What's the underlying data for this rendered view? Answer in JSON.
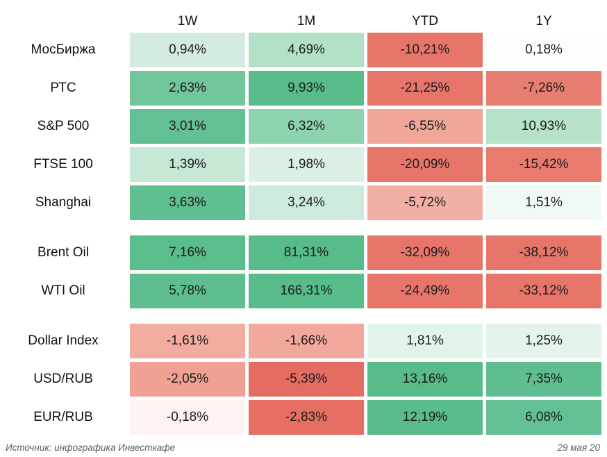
{
  "table": {
    "columns": [
      "1W",
      "1M",
      "YTD",
      "1Y"
    ],
    "groups": [
      {
        "name": "equity-indices",
        "rows": [
          {
            "label": "МосБиржа",
            "cells": [
              {
                "text": "0,94%",
                "bg": "#d4ecdf"
              },
              {
                "text": "4,69%",
                "bg": "#b3e1c8"
              },
              {
                "text": "-10,21%",
                "bg": "#e7756a"
              },
              {
                "text": "0,18%",
                "bg": "#fcfefd"
              }
            ]
          },
          {
            "label": "РТС",
            "cells": [
              {
                "text": "2,63%",
                "bg": "#71c69c"
              },
              {
                "text": "9,93%",
                "bg": "#57bb8a"
              },
              {
                "text": "-21,25%",
                "bg": "#e7756a"
              },
              {
                "text": "-7,26%",
                "bg": "#e87d71"
              }
            ]
          },
          {
            "label": "S&P 500",
            "cells": [
              {
                "text": "3,01%",
                "bg": "#63c094"
              },
              {
                "text": "6,32%",
                "bg": "#8ed3b0"
              },
              {
                "text": "-6,55%",
                "bg": "#f0a79a"
              },
              {
                "text": "10,93%",
                "bg": "#b5e2c9"
              }
            ]
          },
          {
            "label": "FTSE 100",
            "cells": [
              {
                "text": "1,39%",
                "bg": "#c7e7d5"
              },
              {
                "text": "1,98%",
                "bg": "#daf0e5"
              },
              {
                "text": "-20,09%",
                "bg": "#e7756a"
              },
              {
                "text": "-15,42%",
                "bg": "#e87a6e"
              }
            ]
          },
          {
            "label": "Shanghai",
            "cells": [
              {
                "text": "3,63%",
                "bg": "#5fbf91"
              },
              {
                "text": "3,24%",
                "bg": "#cdebdc"
              },
              {
                "text": "-5,72%",
                "bg": "#f2b0a4"
              },
              {
                "text": "1,51%",
                "bg": "#f0f9f4"
              }
            ]
          }
        ]
      },
      {
        "name": "commodities",
        "rows": [
          {
            "label": "Brent Oil",
            "cells": [
              {
                "text": "7,16%",
                "bg": "#5abd8c"
              },
              {
                "text": "81,31%",
                "bg": "#57bb8a"
              },
              {
                "text": "-32,09%",
                "bg": "#e7756a"
              },
              {
                "text": "-38,12%",
                "bg": "#e7756a"
              }
            ]
          },
          {
            "label": "WTI Oil",
            "cells": [
              {
                "text": "5,78%",
                "bg": "#5ebe8f"
              },
              {
                "text": "166,31%",
                "bg": "#57bb8a"
              },
              {
                "text": "-24,49%",
                "bg": "#e7756a"
              },
              {
                "text": "-33,12%",
                "bg": "#e7756a"
              }
            ]
          }
        ]
      },
      {
        "name": "currencies",
        "rows": [
          {
            "label": "Dollar Index",
            "cells": [
              {
                "text": "-1,61%",
                "bg": "#f2aca0"
              },
              {
                "text": "-1,66%",
                "bg": "#f1a99d"
              },
              {
                "text": "1,81%",
                "bg": "#e2f3ea"
              },
              {
                "text": "1,25%",
                "bg": "#e4f4eb"
              }
            ]
          },
          {
            "label": "USD/RUB",
            "cells": [
              {
                "text": "-2,05%",
                "bg": "#f0a094"
              },
              {
                "text": "-5,39%",
                "bg": "#e56c60"
              },
              {
                "text": "13,16%",
                "bg": "#57bb8a"
              },
              {
                "text": "7,35%",
                "bg": "#5fbe90"
              }
            ]
          },
          {
            "label": "EUR/RUB",
            "cells": [
              {
                "text": "-0,18%",
                "bg": "#fdf3f1"
              },
              {
                "text": "-2,83%",
                "bg": "#e66e62"
              },
              {
                "text": "12,19%",
                "bg": "#5abc8b"
              },
              {
                "text": "6,08%",
                "bg": "#64c195"
              }
            ]
          }
        ]
      }
    ]
  },
  "footer": {
    "source": "Источник: инфографика Инвесткафе",
    "date": "29 мая 20"
  },
  "colors": {
    "positive_max": "#57bb8a",
    "negative_max": "#e7756a",
    "neutral": "#ffffff",
    "text": "#1c1c1c",
    "footer_text": "#5f5f5f"
  },
  "chart_data": {
    "type": "heatmap",
    "title": "",
    "columns": [
      "1W",
      "1M",
      "YTD",
      "1Y"
    ],
    "rows": [
      "МосБиржа",
      "РТС",
      "S&P 500",
      "FTSE 100",
      "Shanghai",
      "Brent Oil",
      "WTI Oil",
      "Dollar Index",
      "USD/RUB",
      "EUR/RUB"
    ],
    "row_groups": [
      [
        "МосБиржа",
        "РТС",
        "S&P 500",
        "FTSE 100",
        "Shanghai"
      ],
      [
        "Brent Oil",
        "WTI Oil"
      ],
      [
        "Dollar Index",
        "USD/RUB",
        "EUR/RUB"
      ]
    ],
    "values_pct": [
      [
        0.94,
        4.69,
        -10.21,
        0.18
      ],
      [
        2.63,
        9.93,
        -21.25,
        -7.26
      ],
      [
        3.01,
        6.32,
        -6.55,
        10.93
      ],
      [
        1.39,
        1.98,
        -20.09,
        -15.42
      ],
      [
        3.63,
        3.24,
        -5.72,
        1.51
      ],
      [
        7.16,
        81.31,
        -32.09,
        -38.12
      ],
      [
        5.78,
        166.31,
        -24.49,
        -33.12
      ],
      [
        -1.61,
        -1.66,
        1.81,
        1.25
      ],
      [
        -2.05,
        -5.39,
        13.16,
        7.35
      ],
      [
        -0.18,
        -2.83,
        12.19,
        6.08
      ]
    ],
    "colorscale": {
      "negative": "#e7756a",
      "mid": "#ffffff",
      "positive": "#57bb8a"
    },
    "legend": "none",
    "grid": "off"
  }
}
